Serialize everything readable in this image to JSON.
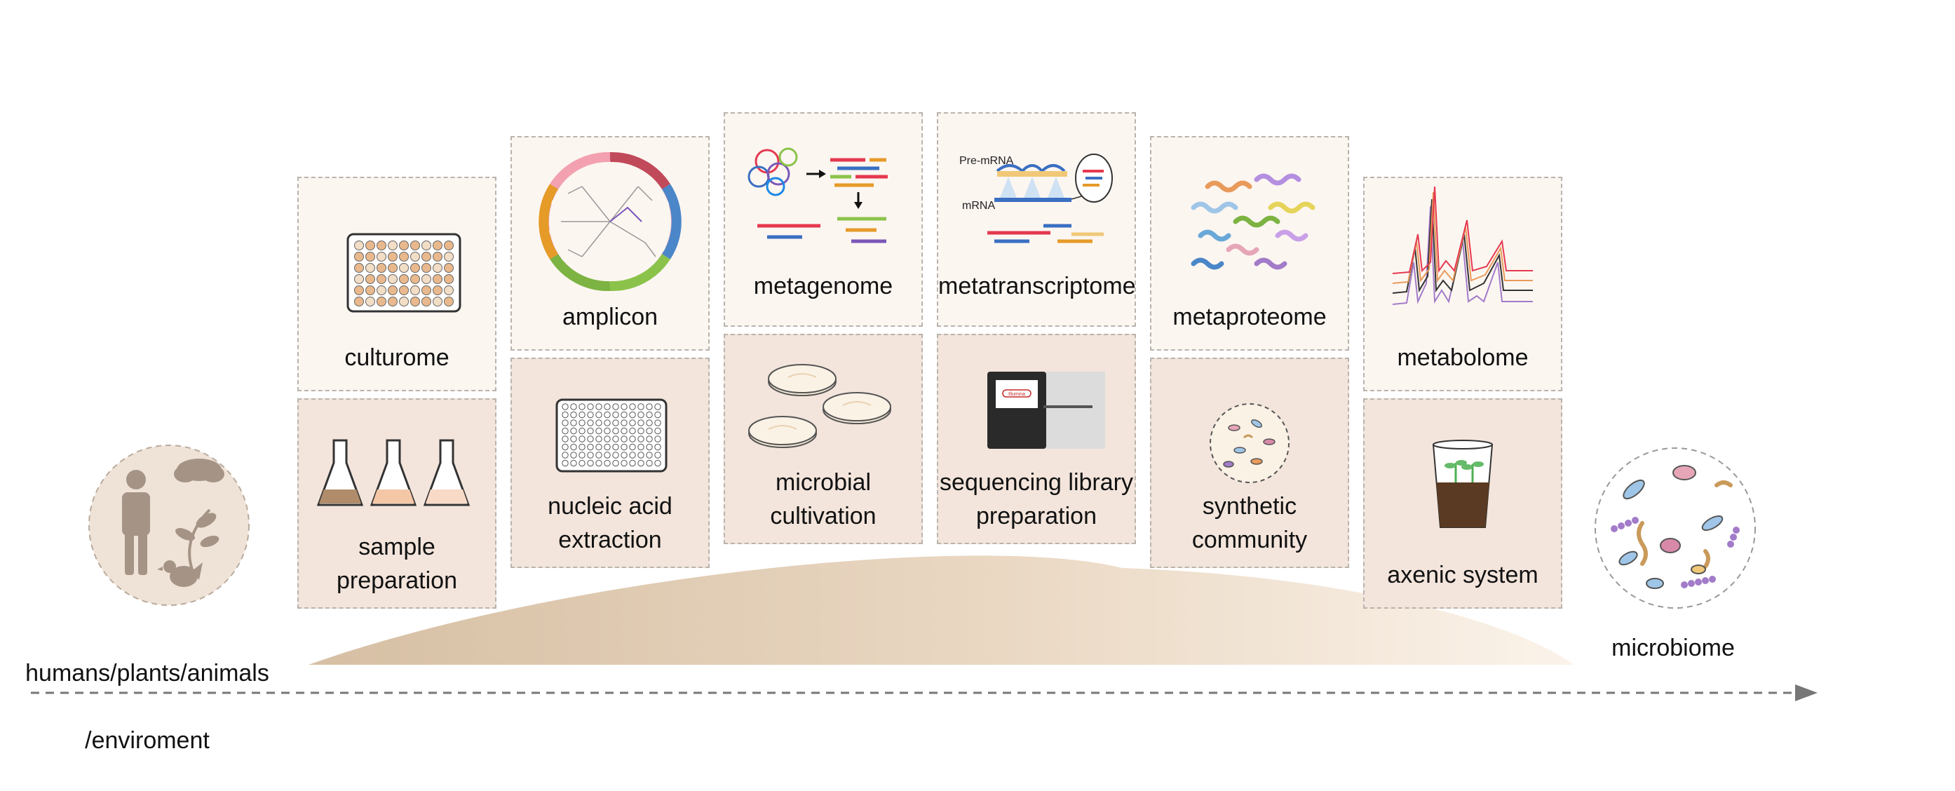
{
  "source": {
    "label_line1": "humans/plants/animals",
    "label_line2": "/enviroment"
  },
  "target": {
    "label": "microbiome"
  },
  "columns": [
    {
      "top": "culturome",
      "bottom": "sample\npreparation"
    },
    {
      "top": "amplicon",
      "bottom": "nucleic acid\nextraction"
    },
    {
      "top": "metagenome",
      "bottom": "microbial\ncultivation"
    },
    {
      "top": "metatranscriptome",
      "bottom": "sequencing library\npreparation"
    },
    {
      "top": "metaproteome",
      "bottom": "synthetic\ncommunity"
    },
    {
      "top": "metabolome",
      "bottom": "axenic system"
    }
  ],
  "annotations": {
    "pre_mrna": "Pre-mRNA",
    "mrna": "mRNA",
    "brand": "Illumina"
  },
  "colors": {
    "box_top": "#fcf6f1",
    "box_bottom": "#f3e5dc",
    "hill": "#d9c4aa",
    "arrow": "#777777"
  }
}
